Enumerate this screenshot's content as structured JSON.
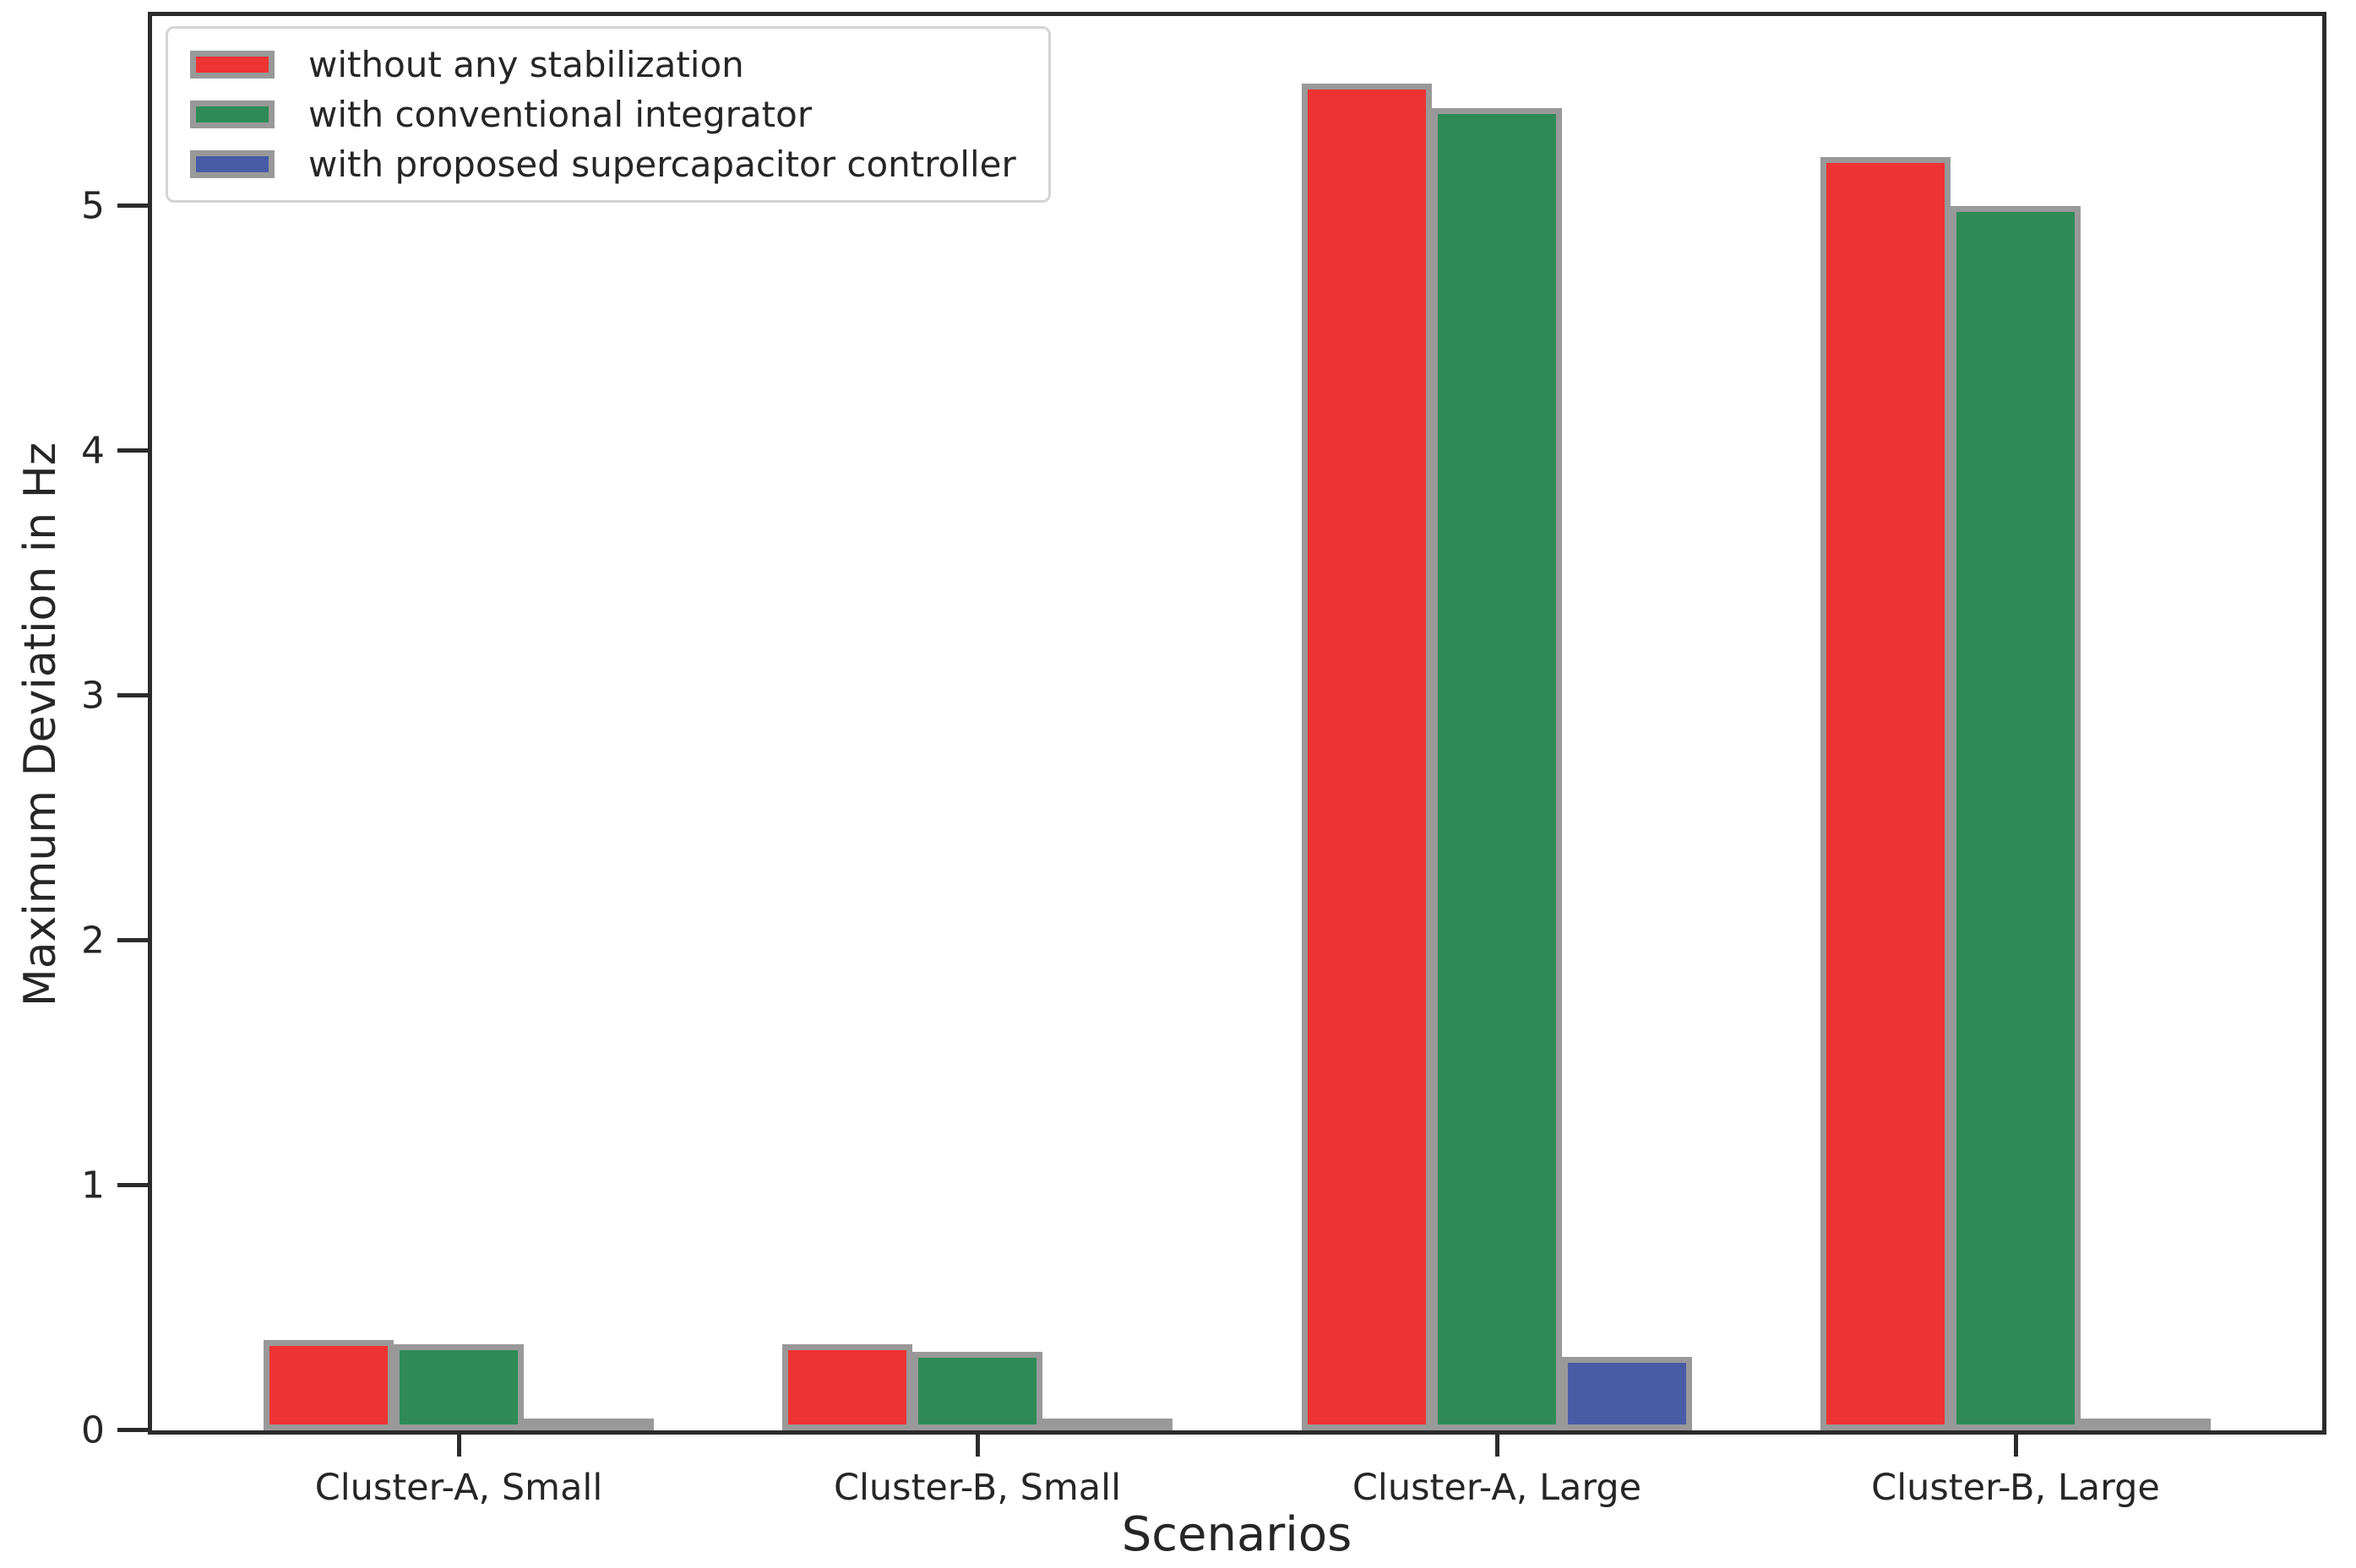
{
  "chart_data": {
    "type": "bar",
    "title": "",
    "xlabel": "Scenarios",
    "ylabel": "Maximum Deviation in Hz",
    "categories": [
      "Cluster-A, Small",
      "Cluster-B, Small",
      "Cluster-A, Large",
      "Cluster-B, Large"
    ],
    "series": [
      {
        "name": "without any stabilization",
        "color": "#ee3333",
        "values": [
          0.37,
          0.35,
          5.5,
          5.2
        ]
      },
      {
        "name": "with conventional integrator",
        "color": "#2e8b57",
        "values": [
          0.35,
          0.32,
          5.4,
          5.0
        ]
      },
      {
        "name": "with proposed supercapacitor controller",
        "color": "#4a5ba6",
        "values": [
          0.02,
          0.01,
          0.3,
          0.01
        ]
      }
    ],
    "ylim": [
      0,
      5.775
    ],
    "yticks": [
      "0",
      "1",
      "2",
      "3",
      "4",
      "5"
    ],
    "bar_edge_color": "#999999",
    "axis_color": "#2b2b2b",
    "text_color": "#262626",
    "legend_position": "upper left",
    "grid": false
  }
}
